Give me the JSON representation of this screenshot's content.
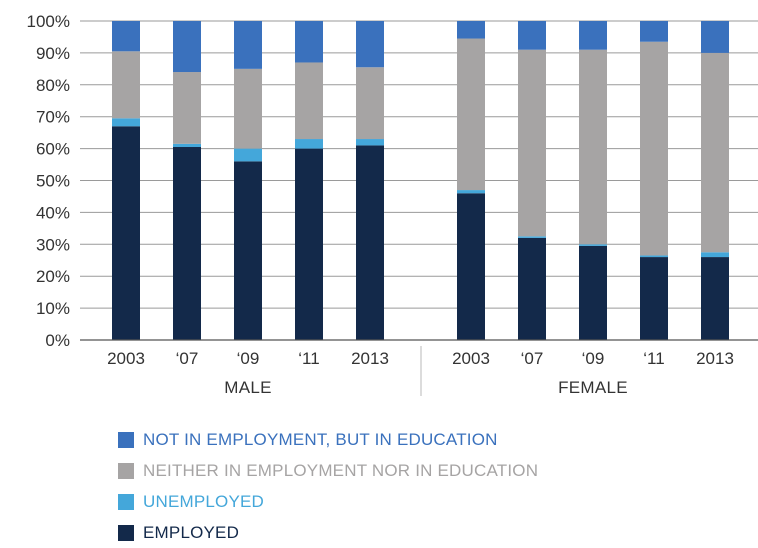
{
  "chart_data": {
    "type": "bar",
    "stacked": true,
    "ylim": [
      0,
      100
    ],
    "yticks": [
      "0%",
      "10%",
      "20%",
      "30%",
      "40%",
      "50%",
      "60%",
      "70%",
      "80%",
      "90%",
      "100%"
    ],
    "grid": true,
    "legend_position": "bottom",
    "groups": [
      {
        "label": "MALE",
        "categories": [
          "2003",
          "‘07",
          "‘09",
          "‘11",
          "2013"
        ]
      },
      {
        "label": "FEMALE",
        "categories": [
          "2003",
          "‘07",
          "‘09",
          "‘11",
          "2013"
        ]
      }
    ],
    "series": [
      {
        "name": "EMPLOYED",
        "color": "#13294a",
        "values": [
          67,
          60.5,
          56,
          60,
          61,
          46,
          32,
          29.5,
          26,
          26
        ]
      },
      {
        "name": "UNEMPLOYED",
        "color": "#44a7da",
        "values": [
          2.5,
          1,
          4,
          3,
          2,
          1,
          0.5,
          0.5,
          0.5,
          1.5
        ]
      },
      {
        "name": "NEITHER IN EMPLOYMENT NOR IN EDUCATION",
        "color": "#a6a4a4",
        "values": [
          21,
          22.5,
          25,
          24,
          22.5,
          47.5,
          58.5,
          61,
          67,
          62.5
        ]
      },
      {
        "name": "NOT IN EMPLOYMENT, BUT IN EDUCATION",
        "color": "#3a71bd",
        "values": [
          9.5,
          16,
          15,
          13,
          14.5,
          5.5,
          9,
          9,
          6.5,
          10
        ]
      }
    ]
  },
  "legend": {
    "items": [
      {
        "label": "NOT IN EMPLOYMENT, BUT IN EDUCATION",
        "color": "#3a71bd",
        "text_color": "#3a71bd"
      },
      {
        "label": "NEITHER IN EMPLOYMENT NOR IN EDUCATION",
        "color": "#a6a4a4",
        "text_color": "#a6a4a4"
      },
      {
        "label": "UNEMPLOYED",
        "color": "#44a7da",
        "text_color": "#44a7da"
      },
      {
        "label": "EMPLOYED",
        "color": "#13294a",
        "text_color": "#13294a"
      }
    ]
  }
}
